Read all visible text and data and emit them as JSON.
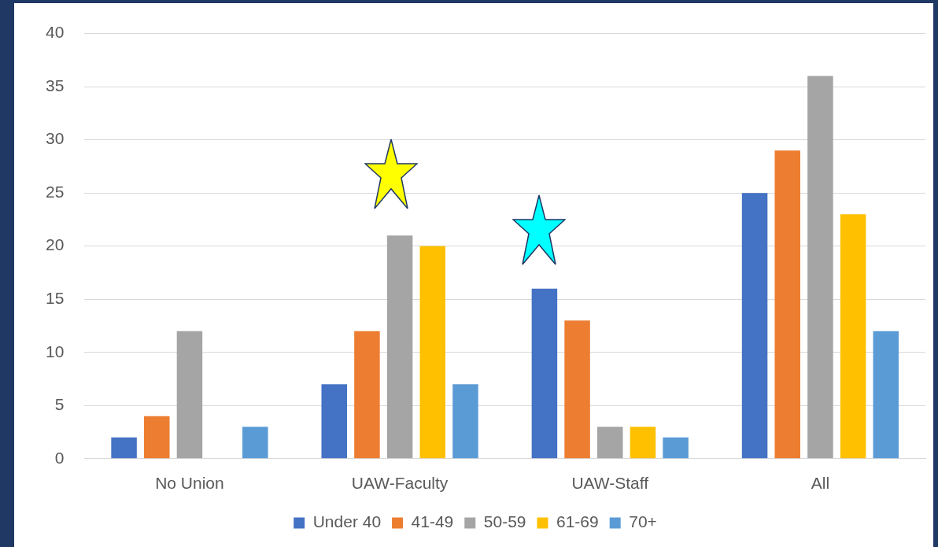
{
  "chart_data": {
    "type": "bar",
    "categories": [
      "No Union",
      "UAW-Faculty",
      "UAW-Staff",
      "All"
    ],
    "series": [
      {
        "name": "Under 40",
        "color": "#4472c4",
        "values": [
          2,
          7,
          16,
          25
        ]
      },
      {
        "name": "41-49",
        "color": "#ed7d31",
        "values": [
          4,
          12,
          13,
          29
        ]
      },
      {
        "name": "50-59",
        "color": "#a5a5a5",
        "values": [
          12,
          21,
          3,
          36
        ]
      },
      {
        "name": "61-69",
        "color": "#ffc000",
        "values": [
          0,
          20,
          3,
          23
        ]
      },
      {
        "name": "70+",
        "color": "#5b9bd5",
        "values": [
          3,
          7,
          2,
          12
        ]
      }
    ],
    "ylim": [
      0,
      40
    ],
    "yticks": [
      0,
      5,
      10,
      15,
      20,
      25,
      30,
      35,
      40
    ],
    "grid": "y",
    "legend": "bottom"
  }
}
